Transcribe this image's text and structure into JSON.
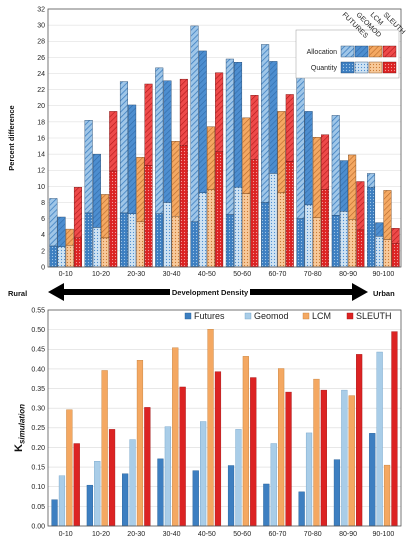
{
  "colors": {
    "futures": "#3d7fc1",
    "geomod": "#a9cde8",
    "lcm": "#f4a862",
    "sleuth": "#dc2323",
    "futures_alloc_light": "#9fc6e8"
  },
  "chart_data": [
    {
      "type": "bar",
      "stacked": true,
      "categories": [
        "0-10",
        "10-20",
        "20-30",
        "30-40",
        "40-50",
        "50-60",
        "60-70",
        "70-80",
        "80-90",
        "90-100"
      ],
      "ylabel": "Percent difference",
      "ylim": [
        0,
        32
      ],
      "yticks": [
        0,
        2,
        4,
        6,
        8,
        10,
        12,
        14,
        16,
        18,
        20,
        22,
        24,
        26,
        28,
        30,
        32
      ],
      "grid": true,
      "legend_position": "top-right",
      "legend_models": [
        "FUTURES",
        "GEOMOD",
        "LCM",
        "SLEUTH"
      ],
      "legend_rows": [
        "Allocation",
        "Quantity"
      ],
      "series": [
        {
          "name": "FUTURES",
          "quantity": [
            2.6,
            6.7,
            6.7,
            6.6,
            5.6,
            6.5,
            8.0,
            6.0,
            6.4,
            9.9
          ],
          "total": [
            8.5,
            18.2,
            23.0,
            24.7,
            29.9,
            25.8,
            27.6,
            23.5,
            18.8,
            11.6
          ]
        },
        {
          "name": "GEOMOD",
          "quantity": [
            2.5,
            4.9,
            6.6,
            8.0,
            9.2,
            9.9,
            11.6,
            7.7,
            6.9,
            3.8
          ],
          "total": [
            6.2,
            14.0,
            20.1,
            23.1,
            26.8,
            25.4,
            25.5,
            19.3,
            13.2,
            5.5
          ]
        },
        {
          "name": "LCM",
          "quantity": [
            2.7,
            3.6,
            5.6,
            6.3,
            9.6,
            9.1,
            9.2,
            6.1,
            5.9,
            3.4
          ],
          "total": [
            4.7,
            9.0,
            13.6,
            15.6,
            17.4,
            18.5,
            19.3,
            16.1,
            13.9,
            9.5
          ]
        },
        {
          "name": "SLEUTH",
          "quantity": [
            3.6,
            11.9,
            12.6,
            15.1,
            14.3,
            13.3,
            13.1,
            9.6,
            4.6,
            2.9
          ],
          "total": [
            9.9,
            19.3,
            22.7,
            23.3,
            24.1,
            21.3,
            21.4,
            16.4,
            10.6,
            4.8
          ]
        }
      ],
      "arrow": {
        "left": "Rural",
        "center": "Development Density",
        "right": "Urban"
      }
    },
    {
      "type": "bar",
      "categories": [
        "0-10",
        "10-20",
        "20-30",
        "30-40",
        "40-50",
        "50-60",
        "60-70",
        "70-80",
        "80-90",
        "90-100"
      ],
      "ylabel": "K",
      "ylabel_sub": "simulation",
      "ylim": [
        0,
        0.55
      ],
      "yticks": [
        "0.00",
        "0.05",
        "0.10",
        "0.15",
        "0.20",
        "0.25",
        "0.30",
        "0.35",
        "0.40",
        "0.45",
        "0.50",
        "0.55"
      ],
      "grid": true,
      "legend_position": "top",
      "series": [
        {
          "name": "Futures",
          "values": [
            0.067,
            0.104,
            0.133,
            0.171,
            0.141,
            0.154,
            0.107,
            0.087,
            0.169,
            0.236
          ]
        },
        {
          "name": "Geomod",
          "values": [
            0.128,
            0.165,
            0.22,
            0.253,
            0.266,
            0.246,
            0.21,
            0.237,
            0.346,
            0.443
          ]
        },
        {
          "name": "LCM",
          "values": [
            0.296,
            0.396,
            0.422,
            0.454,
            0.501,
            0.432,
            0.401,
            0.374,
            0.332,
            0.155
          ]
        },
        {
          "name": "SLEUTH",
          "values": [
            0.21,
            0.246,
            0.302,
            0.354,
            0.393,
            0.378,
            0.341,
            0.346,
            0.437,
            0.495
          ]
        }
      ]
    }
  ]
}
